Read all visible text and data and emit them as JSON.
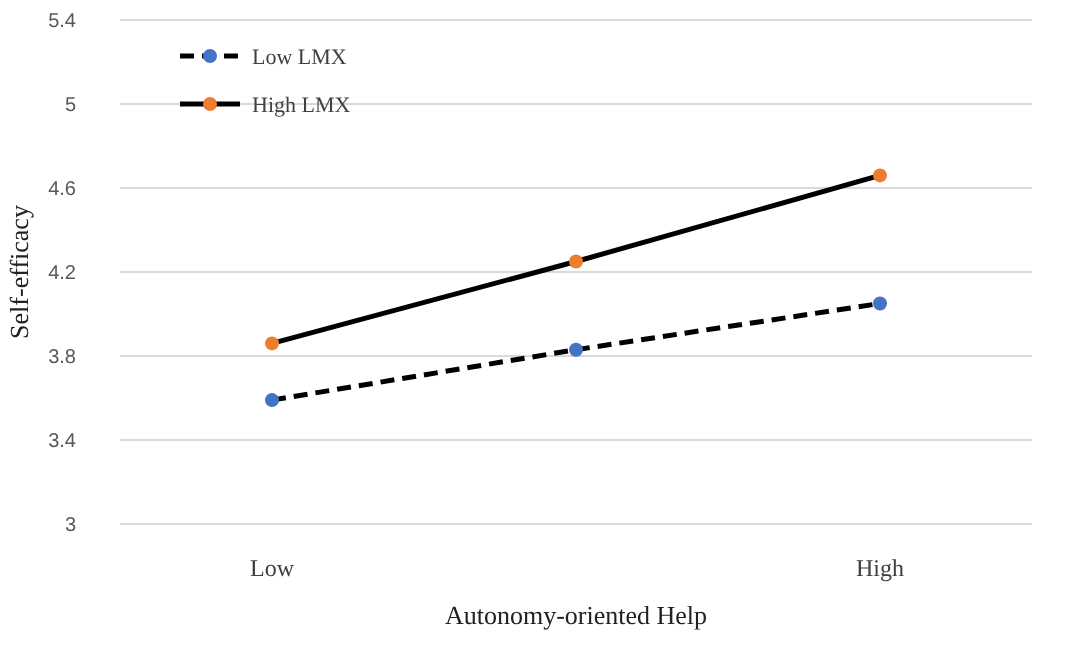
{
  "chart_data": {
    "type": "line",
    "xlabel": "Autonomy-oriented  Help",
    "ylabel": "Self-efficacy",
    "categories": [
      "Low",
      null,
      "High"
    ],
    "ylim": [
      3,
      5.4
    ],
    "yticks": [
      3,
      3.4,
      3.8,
      4.2,
      4.6,
      5,
      5.4
    ],
    "grid": "y",
    "legend": "top left",
    "marker": "circle",
    "series": [
      {
        "name": "Low LMX",
        "color": "#000000",
        "colors": [
          "#4472c4",
          "#4472c4",
          "#4472c4"
        ],
        "line_style": "dashed",
        "values": [
          3.59,
          3.83,
          4.05
        ]
      },
      {
        "name": "High LMX",
        "color": "#000000",
        "colors": [
          "#ed7d31",
          "#ed7d31",
          "#ed7d31"
        ],
        "line_style": "solid",
        "values": [
          3.86,
          4.25,
          4.66
        ]
      }
    ]
  }
}
